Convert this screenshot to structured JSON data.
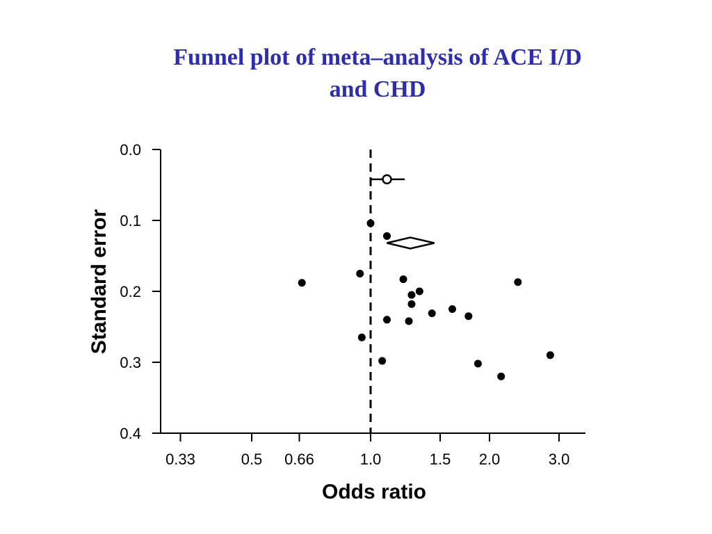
{
  "chart_data": {
    "type": "scatter",
    "title_lines": [
      "Funnel plot of meta–analysis of ACE I/D",
      "and CHD"
    ],
    "xlabel": "Odds ratio",
    "ylabel": "Standard error",
    "x_scale": "log",
    "x_ticks": [
      {
        "value": 0.33,
        "label": "0.33"
      },
      {
        "value": 0.5,
        "label": "0.5"
      },
      {
        "value": 0.66,
        "label": "0.66"
      },
      {
        "value": 1.0,
        "label": "1.0"
      },
      {
        "value": 1.5,
        "label": "1.5"
      },
      {
        "value": 2.0,
        "label": "2.0"
      },
      {
        "value": 3.0,
        "label": "3.0"
      }
    ],
    "y_ticks": [
      {
        "value": 0.0,
        "label": "0.0"
      },
      {
        "value": 0.1,
        "label": "0.1"
      },
      {
        "value": 0.2,
        "label": "0.2"
      },
      {
        "value": 0.3,
        "label": "0.3"
      },
      {
        "value": 0.4,
        "label": "0.4"
      }
    ],
    "ylim": [
      0.0,
      0.4
    ],
    "y_inverted": true,
    "xlim": [
      0.3,
      3.5
    ],
    "reference_line_x": 1.0,
    "studies": [
      {
        "or": 0.67,
        "se": 0.188
      },
      {
        "or": 0.94,
        "se": 0.175
      },
      {
        "or": 0.95,
        "se": 0.265
      },
      {
        "or": 1.0,
        "se": 0.104
      },
      {
        "or": 1.07,
        "se": 0.298
      },
      {
        "or": 1.1,
        "se": 0.24
      },
      {
        "or": 1.1,
        "se": 0.122
      },
      {
        "or": 1.21,
        "se": 0.183
      },
      {
        "or": 1.25,
        "se": 0.242
      },
      {
        "or": 1.27,
        "se": 0.205
      },
      {
        "or": 1.27,
        "se": 0.218
      },
      {
        "or": 1.33,
        "se": 0.2
      },
      {
        "or": 1.43,
        "se": 0.231
      },
      {
        "or": 1.61,
        "se": 0.225
      },
      {
        "or": 1.77,
        "se": 0.235
      },
      {
        "or": 1.87,
        "se": 0.302
      },
      {
        "or": 2.14,
        "se": 0.32
      },
      {
        "or": 2.36,
        "se": 0.187
      },
      {
        "or": 2.85,
        "se": 0.29
      }
    ],
    "open_estimate": {
      "or": 1.1,
      "se": 0.042,
      "ci_low": 1.0,
      "ci_high": 1.22
    },
    "pooled_diamond": {
      "or": 1.26,
      "se": 0.126,
      "ci_low": 1.1,
      "ci_high": 1.45
    },
    "grid": false,
    "colors": {
      "title": "#2e2ead",
      "points": "#000000"
    }
  }
}
